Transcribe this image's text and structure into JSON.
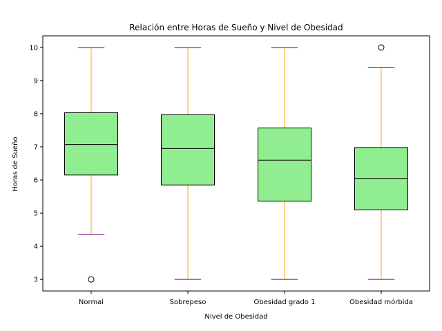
{
  "chart_data": {
    "type": "boxplot",
    "title": "Relación entre Horas de Sueño y Nivel de Obesidad",
    "xlabel": "Nivel de Obesidad",
    "ylabel": "Horas de Sueño",
    "categories": [
      "Normal",
      "Sobrepeso",
      "Obesidad grado 1",
      "Obesidad mórbida"
    ],
    "boxes": [
      {
        "whisker_low": 4.35,
        "q1": 6.15,
        "median": 7.07,
        "q3": 8.03,
        "whisker_high": 10.0,
        "outliers": [
          3.0
        ]
      },
      {
        "whisker_low": 3.0,
        "q1": 5.85,
        "median": 6.95,
        "q3": 7.97,
        "whisker_high": 10.0,
        "outliers": []
      },
      {
        "whisker_low": 3.0,
        "q1": 5.36,
        "median": 6.6,
        "q3": 7.57,
        "whisker_high": 10.0,
        "outliers": []
      },
      {
        "whisker_low": 3.0,
        "q1": 5.1,
        "median": 6.05,
        "q3": 6.98,
        "whisker_high": 9.4,
        "outliers": [
          10.0
        ]
      }
    ],
    "ylim": [
      2.65,
      10.35
    ],
    "yticks": [
      3,
      4,
      5,
      6,
      7,
      8,
      9,
      10
    ],
    "grid": false,
    "colors": {
      "box_fill": "#90ee90",
      "box_edge": "#000000",
      "median": "#000000",
      "whisker": "#ffa500",
      "cap": "#800080",
      "outlier_edge": "#000000"
    }
  }
}
